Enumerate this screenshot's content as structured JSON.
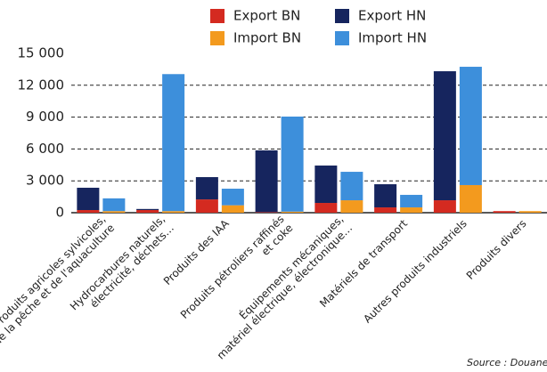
{
  "chart_data": {
    "type": "stacked_bar",
    "categories": [
      [
        "Produits agricoles sylvicoles,",
        "de la pêche et de l'aquaculture"
      ],
      [
        "Hydrocarbures naturels,",
        "électricité, déchets…"
      ],
      [
        "Produits des IAA"
      ],
      [
        "Produits pétroliers raffinés",
        "et coke"
      ],
      [
        "Équipements mécaniques,",
        "matériel électrique, électronique…"
      ],
      [
        "Matériels de transport"
      ],
      [
        "Autres produits industriels"
      ],
      [
        "Produits divers"
      ]
    ],
    "series": [
      {
        "name": "Export BN",
        "color": "#d42a20",
        "stack": "export",
        "values": [
          250,
          250,
          1250,
          50,
          920,
          500,
          1170,
          150
        ]
      },
      {
        "name": "Export HN",
        "color": "#16255e",
        "stack": "export",
        "values": [
          2100,
          100,
          2100,
          5820,
          3520,
          2180,
          12150,
          0
        ]
      },
      {
        "name": "Import BN",
        "color": "#f39a1e",
        "stack": "import",
        "values": [
          150,
          150,
          700,
          100,
          1170,
          500,
          2600,
          150
        ]
      },
      {
        "name": "Import HN",
        "color": "#3d8fdb",
        "stack": "import",
        "values": [
          1200,
          12900,
          1560,
          8950,
          2680,
          1180,
          11140,
          0
        ]
      }
    ],
    "ylim": [
      0,
      15000
    ],
    "yticks": [
      0,
      {
        "value": 3000,
        "label": "3 000"
      },
      {
        "value": 6000,
        "label": "6 000"
      },
      {
        "value": 9000,
        "label": "9 000"
      },
      {
        "value": 12000,
        "label": "12 000"
      },
      {
        "value": 15000,
        "label": "15 000"
      }
    ],
    "grid": true,
    "source": "Source : Douane"
  }
}
